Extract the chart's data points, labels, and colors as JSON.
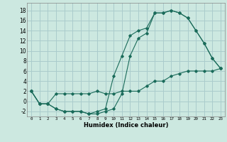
{
  "title": "",
  "xlabel": "Humidex (Indice chaleur)",
  "ylabel": "",
  "bg_color": "#cce8e0",
  "grid_color": "#aacccc",
  "line_color": "#1a6b5a",
  "xlim": [
    -0.5,
    23.5
  ],
  "ylim": [
    -3,
    19.5
  ],
  "xticks": [
    0,
    1,
    2,
    3,
    4,
    5,
    6,
    7,
    8,
    9,
    10,
    11,
    12,
    13,
    14,
    15,
    16,
    17,
    18,
    19,
    20,
    21,
    22,
    23
  ],
  "yticks": [
    -2,
    0,
    2,
    4,
    6,
    8,
    10,
    12,
    14,
    16,
    18
  ],
  "line1_x": [
    0,
    1,
    2,
    3,
    4,
    5,
    6,
    7,
    8,
    9,
    10,
    11,
    12,
    13,
    14,
    15,
    16,
    17,
    18,
    19,
    20,
    21,
    22,
    23
  ],
  "line1_y": [
    2,
    -0.5,
    -0.5,
    1.5,
    1.5,
    1.5,
    1.5,
    1.5,
    2.0,
    1.5,
    1.5,
    2,
    2,
    2,
    3,
    4,
    4,
    5,
    5.5,
    6,
    6,
    6,
    6,
    6.5
  ],
  "line2_x": [
    0,
    1,
    2,
    3,
    4,
    5,
    6,
    7,
    8,
    9,
    10,
    11,
    12,
    13,
    14,
    15,
    16,
    17,
    18,
    19,
    20,
    21,
    22,
    23
  ],
  "line2_y": [
    2,
    -0.5,
    -0.5,
    -1.5,
    -2,
    -2,
    -2,
    -2.5,
    -2.5,
    -2,
    -1.5,
    1.5,
    9,
    12.5,
    13.5,
    17.5,
    17.5,
    18,
    17.5,
    16.5,
    14,
    11.5,
    8.5,
    6.5
  ],
  "line3_x": [
    0,
    1,
    2,
    3,
    4,
    5,
    6,
    7,
    8,
    9,
    10,
    11,
    12,
    13,
    14,
    15,
    16,
    17,
    18,
    19,
    20,
    21,
    22,
    23
  ],
  "line3_y": [
    2,
    -0.5,
    -0.5,
    -1.5,
    -2,
    -2,
    -2,
    -2.5,
    -2,
    -1.5,
    5,
    9,
    13,
    14,
    14.5,
    17.5,
    17.5,
    18,
    17.5,
    16.5,
    14,
    11.5,
    8.5,
    6.5
  ]
}
